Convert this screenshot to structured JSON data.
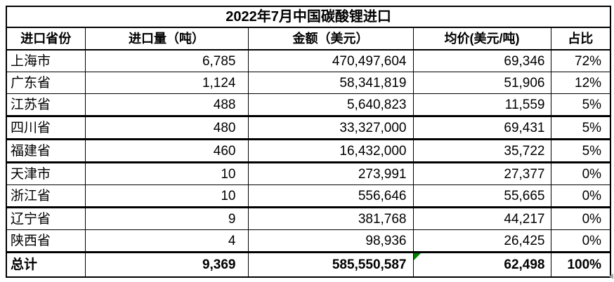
{
  "title": "2022年7月中国碳酸锂进口",
  "colors": {
    "border": "#000000",
    "background": "#ffffff",
    "flag_green": "#008000",
    "artifact_gray": "#a6a6a6"
  },
  "table": {
    "columns": [
      "进口省份",
      "进口量（吨）",
      "金额（美元）",
      "均价(美元/吨)",
      "占比"
    ],
    "rows": [
      [
        "上海市",
        "6,785",
        "470,497,604",
        "69,346",
        "72%"
      ],
      [
        "广东省",
        "1,124",
        "58,341,819",
        "51,906",
        "12%"
      ],
      [
        "江苏省",
        "488",
        "5,640,823",
        "11,559",
        "5%"
      ],
      [
        "四川省",
        "480",
        "33,327,000",
        "69,431",
        "5%"
      ],
      [
        "福建省",
        "460",
        "16,432,000",
        "35,722",
        "5%"
      ],
      [
        "天津市",
        "10",
        "273,991",
        "27,377",
        "0%"
      ],
      [
        "浙江省",
        "10",
        "556,646",
        "55,665",
        "0%"
      ],
      [
        "辽宁省",
        "9",
        "381,768",
        "44,217",
        "0%"
      ],
      [
        "陕西省",
        "4",
        "98,936",
        "26,425",
        "0%"
      ]
    ],
    "total": [
      "总计",
      "9,369",
      "585,550,587",
      "62,498",
      "100%"
    ]
  },
  "chart_data": {
    "type": "table",
    "title": "2022年7月中国碳酸锂进口",
    "columns": [
      "进口省份",
      "进口量（吨）",
      "金额（美元）",
      "均价(美元/吨)",
      "占比"
    ],
    "rows": [
      {
        "province": "上海市",
        "volume_tons": 6785,
        "amount_usd": 470497604,
        "avg_price_usd_per_ton": 69346,
        "share": "72%"
      },
      {
        "province": "广东省",
        "volume_tons": 1124,
        "amount_usd": 58341819,
        "avg_price_usd_per_ton": 51906,
        "share": "12%"
      },
      {
        "province": "江苏省",
        "volume_tons": 488,
        "amount_usd": 5640823,
        "avg_price_usd_per_ton": 11559,
        "share": "5%"
      },
      {
        "province": "四川省",
        "volume_tons": 480,
        "amount_usd": 33327000,
        "avg_price_usd_per_ton": 69431,
        "share": "5%"
      },
      {
        "province": "福建省",
        "volume_tons": 460,
        "amount_usd": 16432000,
        "avg_price_usd_per_ton": 35722,
        "share": "5%"
      },
      {
        "province": "天津市",
        "volume_tons": 10,
        "amount_usd": 273991,
        "avg_price_usd_per_ton": 27377,
        "share": "0%"
      },
      {
        "province": "浙江省",
        "volume_tons": 10,
        "amount_usd": 556646,
        "avg_price_usd_per_ton": 55665,
        "share": "0%"
      },
      {
        "province": "辽宁省",
        "volume_tons": 9,
        "amount_usd": 381768,
        "avg_price_usd_per_ton": 44217,
        "share": "0%"
      },
      {
        "province": "陕西省",
        "volume_tons": 4,
        "amount_usd": 98936,
        "avg_price_usd_per_ton": 26425,
        "share": "0%"
      }
    ],
    "total": {
      "province": "总计",
      "volume_tons": 9369,
      "amount_usd": 585550587,
      "avg_price_usd_per_ton": 62498,
      "share": "100%"
    }
  }
}
